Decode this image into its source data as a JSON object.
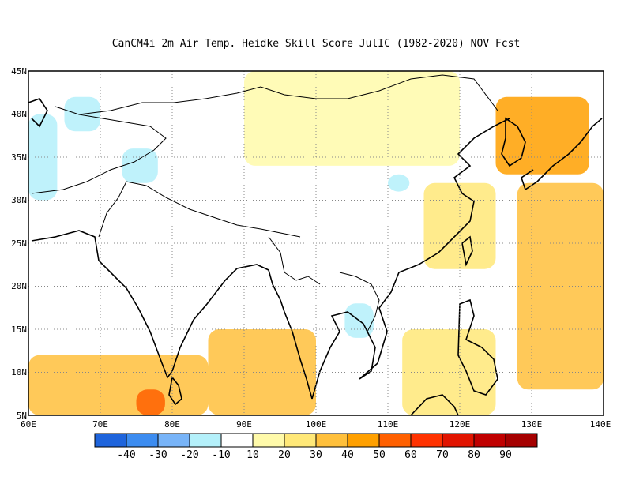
{
  "title": "CanCM4i  2m Air Temp. Heidke Skill Score JulIC (1982-2020) NOV Fcst",
  "map": {
    "lon_range": [
      60,
      140
    ],
    "lat_range": [
      5,
      45
    ],
    "x_ticks": [
      "60E",
      "70E",
      "80E",
      "90E",
      "100E",
      "110E",
      "120E",
      "130E",
      "140E"
    ],
    "y_ticks": [
      "45N",
      "40N",
      "35N",
      "30N",
      "25N",
      "20N",
      "15N",
      "10N",
      "5N"
    ],
    "gridlines": true
  },
  "colorbar": {
    "colors": [
      "#1e64dc",
      "#3c8cf0",
      "#78b4f8",
      "#b4f0fa",
      "#ffffff",
      "#fffaaa",
      "#ffe878",
      "#ffc03c",
      "#ffa000",
      "#ff6000",
      "#ff3200",
      "#e11400",
      "#c00000",
      "#a50000"
    ],
    "labels": [
      "-40",
      "-30",
      "-20",
      "-10",
      "10",
      "20",
      "30",
      "40",
      "50",
      "60",
      "70",
      "80",
      "90"
    ]
  },
  "chart_data": {
    "type": "heatmap",
    "title": "CanCM4i  2m Air Temp. Heidke Skill Score JulIC (1982-2020) NOV Fcst",
    "x_range": [
      60,
      140
    ],
    "y_range": [
      5,
      45
    ],
    "x_ticks": [
      "60E",
      "70E",
      "80E",
      "90E",
      "100E",
      "110E",
      "120E",
      "130E",
      "140E"
    ],
    "y_ticks": [
      "45N",
      "40N",
      "35N",
      "30N",
      "25N",
      "20N",
      "15N",
      "10N",
      "5N"
    ],
    "legend": "bottom",
    "levels": [
      -40,
      -30,
      -20,
      -10,
      10,
      20,
      30,
      40,
      50,
      60,
      70,
      80,
      90
    ],
    "regions": [
      {
        "lon": [
          60,
          64
        ],
        "lat": [
          30,
          40
        ],
        "value": -15
      },
      {
        "lon": [
          65,
          70
        ],
        "lat": [
          38,
          42
        ],
        "value": -15
      },
      {
        "lon": [
          73,
          78
        ],
        "lat": [
          32,
          36
        ],
        "value": -20
      },
      {
        "lon": [
          104,
          108
        ],
        "lat": [
          14,
          18
        ],
        "value": -20
      },
      {
        "lon": [
          110,
          113
        ],
        "lat": [
          31,
          33
        ],
        "value": -20
      },
      {
        "lon": [
          125,
          138
        ],
        "lat": [
          33,
          42
        ],
        "value": 45
      },
      {
        "lon": [
          128,
          140
        ],
        "lat": [
          8,
          32
        ],
        "value": 35
      },
      {
        "lon": [
          60,
          85
        ],
        "lat": [
          5,
          12
        ],
        "value": 35
      },
      {
        "lon": [
          75,
          79
        ],
        "lat": [
          5,
          8
        ],
        "value": 55
      },
      {
        "lon": [
          85,
          100
        ],
        "lat": [
          5,
          15
        ],
        "value": 30
      },
      {
        "lon": [
          112,
          125
        ],
        "lat": [
          5,
          15
        ],
        "value": 25
      },
      {
        "lon": [
          90,
          120
        ],
        "lat": [
          34,
          45
        ],
        "value": 15
      },
      {
        "lon": [
          115,
          125
        ],
        "lat": [
          22,
          32
        ],
        "value": 25
      }
    ]
  }
}
